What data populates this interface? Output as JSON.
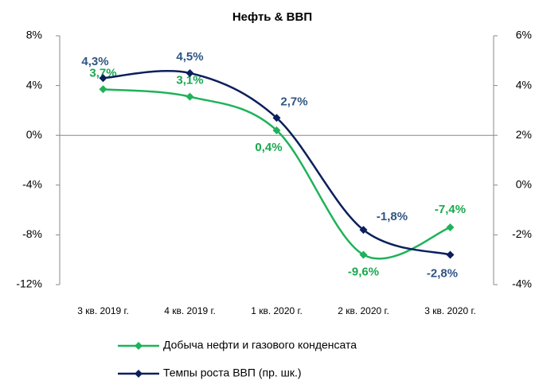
{
  "chart_data": {
    "type": "line",
    "title": "Нефть & ВВП",
    "categories": [
      "3 кв. 2019 г.",
      "4 кв. 2019 г.",
      "1 кв. 2020 г.",
      "2 кв. 2020 г.",
      "3 кв. 2020 г."
    ],
    "ylim": [
      -12,
      8
    ],
    "yticks": [
      {
        "value": -12,
        "label": "-12%"
      },
      {
        "value": -8,
        "label": "-8%"
      },
      {
        "value": -4,
        "label": "-4%"
      },
      {
        "value": 0,
        "label": "0%"
      },
      {
        "value": 4,
        "label": "4%"
      },
      {
        "value": 8,
        "label": "8%"
      }
    ],
    "y2lim": [
      -4,
      6
    ],
    "y2ticks": [
      {
        "value": -4,
        "label": "-4%"
      },
      {
        "value": -2,
        "label": "-2%"
      },
      {
        "value": 0,
        "label": "0%"
      },
      {
        "value": 2,
        "label": "2%"
      },
      {
        "value": 4,
        "label": "4%"
      },
      {
        "value": 6,
        "label": "6%"
      }
    ],
    "legend": "bottom",
    "series": [
      {
        "name": "Добыча нефти и газового конденсата",
        "color": "#1fb25a",
        "label_color": "#1aa84f",
        "values": [
          3.7,
          3.1,
          0.4,
          -9.6,
          -7.4
        ],
        "value_labels": [
          "3,7%",
          "3,1%",
          "0,4%",
          "-9,6%",
          "-7,4%"
        ]
      },
      {
        "name": "Темпы роста ВВП (пр. шк.)",
        "color": "#0b1f5c",
        "label_color": "#2f5583",
        "axis": "y2",
        "values": [
          4.3,
          4.5,
          2.7,
          -1.8,
          -2.8
        ],
        "value_labels": [
          "4,3%",
          "4,5%",
          "2,7%",
          "-1,8%",
          "-2,8%"
        ]
      }
    ]
  }
}
